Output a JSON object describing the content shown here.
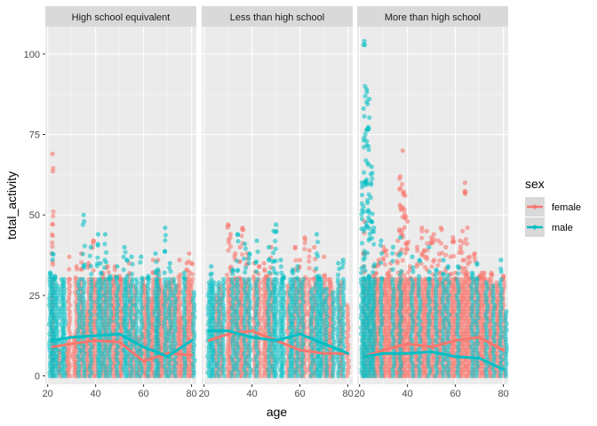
{
  "chart_data": {
    "type": "scatter",
    "xlabel": "age",
    "ylabel": "total_activity",
    "xlim": [
      19,
      82
    ],
    "ylim": [
      -2.6,
      108.5
    ],
    "x_ticks": [
      20,
      40,
      60,
      80
    ],
    "x_tick_labels": [
      "20",
      "40",
      "60",
      "80"
    ],
    "y_ticks": [
      0,
      25,
      50,
      75,
      100
    ],
    "y_tick_labels": [
      "0",
      "25",
      "50",
      "75",
      "100"
    ],
    "panels": [
      "High school equivalent",
      "Less than high school",
      "More than high school"
    ],
    "legend": {
      "title": "sex",
      "entries": [
        {
          "label": "female",
          "color": "#F8766D"
        },
        {
          "label": "male",
          "color": "#00BFC4"
        }
      ]
    },
    "colors": {
      "female": "#F8766D",
      "male": "#00BFC4",
      "panel_bg": "#EBEBEB",
      "strip_bg": "#D9D9D9",
      "grid": "#FFFFFF"
    },
    "series": [
      {
        "name": "female",
        "panel": "High school equivalent",
        "ages": [
          22,
          25,
          28,
          29,
          31,
          32,
          34,
          36,
          37,
          39,
          40,
          43,
          45,
          47,
          48,
          50,
          51,
          54,
          56,
          58,
          60,
          61,
          63,
          64,
          66,
          67,
          68,
          70,
          72,
          74,
          75,
          76,
          78,
          79,
          80
        ],
        "max": [
          69,
          8,
          10,
          37,
          12,
          34,
          38,
          20,
          35,
          42,
          30,
          32,
          34,
          30,
          34,
          31,
          30,
          35,
          28,
          12,
          30,
          28,
          24,
          36,
          36,
          30,
          27,
          29,
          30,
          28,
          36,
          18,
          35,
          38,
          35
        ],
        "smooth_x": [
          22,
          30,
          40,
          50,
          60,
          70,
          80
        ],
        "smooth_y": [
          9,
          10,
          11,
          10.5,
          4.5,
          7,
          6.5
        ]
      },
      {
        "name": "male",
        "panel": "High school equivalent",
        "ages": [
          21,
          22,
          23,
          24,
          26,
          27,
          33,
          35,
          38,
          41,
          42,
          44,
          46,
          49,
          52,
          53,
          55,
          57,
          59,
          62,
          65,
          66,
          69,
          71,
          73,
          77,
          81
        ],
        "max": [
          32,
          38,
          31,
          28,
          30,
          30,
          30,
          50,
          40,
          44,
          35,
          44,
          31,
          34,
          40,
          36,
          37,
          30,
          37,
          31,
          38,
          33,
          46,
          35,
          30,
          32,
          26
        ],
        "smooth_x": [
          22,
          30,
          40,
          50,
          60,
          70,
          80
        ],
        "smooth_y": [
          11,
          12,
          12.5,
          13,
          9,
          6,
          11
        ]
      },
      {
        "name": "female",
        "panel": "Less than high school",
        "ages": [
          25,
          27,
          30,
          31,
          33,
          35,
          36,
          38,
          41,
          43,
          45,
          46,
          48,
          55,
          58,
          60,
          62,
          64,
          66,
          70,
          72,
          73,
          77,
          80
        ],
        "max": [
          25,
          28,
          47,
          44,
          38,
          40,
          46,
          38,
          35,
          34,
          35,
          31,
          40,
          28,
          40,
          36,
          43,
          39,
          40,
          37,
          30,
          30,
          29,
          22
        ],
        "smooth_x": [
          22,
          30,
          40,
          50,
          60,
          70,
          80
        ],
        "smooth_y": [
          11,
          13,
          14,
          11,
          8,
          7,
          7
        ]
      },
      {
        "name": "male",
        "panel": "Less than high school",
        "ages": [
          22,
          23,
          24,
          26,
          28,
          32,
          34,
          37,
          39,
          42,
          47,
          49,
          50,
          52,
          53,
          56,
          57,
          59,
          61,
          65,
          67,
          68,
          69,
          71,
          74,
          76,
          78
        ],
        "max": [
          29,
          34,
          29,
          29,
          30,
          33,
          44,
          41,
          38,
          42,
          40,
          45,
          47,
          36,
          31,
          30,
          33,
          34,
          30,
          27,
          44,
          31,
          30,
          27,
          26,
          35,
          36
        ],
        "smooth_x": [
          22,
          30,
          40,
          50,
          60,
          70,
          80
        ],
        "smooth_y": [
          14,
          14,
          12,
          11,
          13,
          10,
          7
        ]
      },
      {
        "name": "female",
        "panel": "More than high school",
        "ages": [
          22,
          24,
          26,
          27,
          28,
          30,
          31,
          32,
          33,
          35,
          36,
          37,
          38,
          39,
          40,
          41,
          43,
          44,
          46,
          47,
          48,
          50,
          51,
          53,
          54,
          56,
          58,
          59,
          60,
          62,
          63,
          64,
          65,
          66,
          68,
          70,
          71,
          72,
          74,
          75,
          77,
          78,
          80
        ],
        "max": [
          48,
          30,
          34,
          34,
          36,
          40,
          39,
          32,
          35,
          30,
          42,
          62,
          70,
          56,
          48,
          34,
          30,
          40,
          46,
          39,
          45,
          43,
          44,
          42,
          46,
          40,
          37,
          43,
          32,
          42,
          45,
          60,
          46,
          37,
          38,
          31,
          32,
          32,
          30,
          32,
          29,
          28,
          31
        ],
        "smooth_x": [
          22,
          30,
          40,
          50,
          60,
          70,
          80
        ],
        "smooth_y": [
          6,
          8,
          10,
          9,
          11,
          12,
          8
        ]
      },
      {
        "name": "male",
        "panel": "More than high school",
        "ages": [
          21,
          22,
          23,
          24,
          25,
          26,
          29,
          34,
          37,
          42,
          45,
          49,
          52,
          55,
          57,
          61,
          67,
          69,
          73,
          76,
          79,
          81
        ],
        "max": [
          60,
          104,
          89,
          86,
          65,
          46,
          42,
          40,
          43,
          37,
          36,
          40,
          33,
          36,
          34,
          34,
          32,
          35,
          29,
          28,
          36,
          20
        ],
        "smooth_x": [
          22,
          30,
          40,
          50,
          60,
          70,
          80
        ],
        "smooth_y": [
          6,
          7,
          7,
          7.5,
          6,
          5.5,
          2
        ]
      }
    ]
  }
}
